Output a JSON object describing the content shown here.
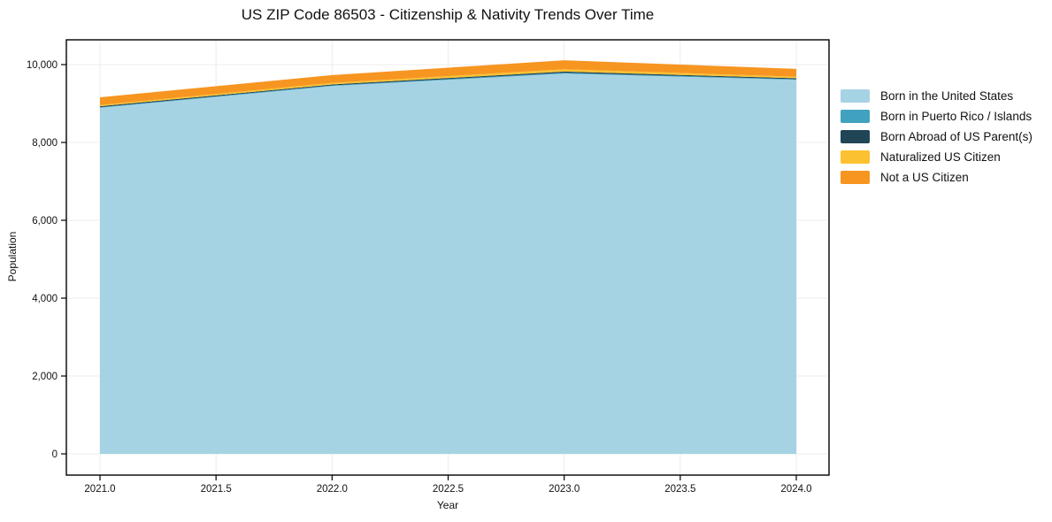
{
  "title": "US ZIP Code 86503 - Citizenship & Nativity Trends Over Time",
  "chart_data": {
    "type": "area",
    "stacked": true,
    "title": "US ZIP Code 86503 - Citizenship & Nativity Trends Over Time",
    "xlabel": "Year",
    "ylabel": "Population",
    "x": [
      2021,
      2022,
      2023,
      2024
    ],
    "series": [
      {
        "name": "Born in the United States",
        "color": "#a5d3e4",
        "values": [
          8890,
          9450,
          9770,
          9610
        ]
      },
      {
        "name": "Born in Puerto Rico / Islands",
        "color": "#41a2c0",
        "values": [
          15,
          15,
          20,
          15
        ]
      },
      {
        "name": "Born Abroad of US Parent(s)",
        "color": "#1f4557",
        "values": [
          25,
          25,
          30,
          25
        ]
      },
      {
        "name": "Naturalized US Citizen",
        "color": "#fcc130",
        "values": [
          30,
          40,
          60,
          40
        ]
      },
      {
        "name": "Not a US Citizen",
        "color": "#f79521",
        "values": [
          200,
          200,
          230,
          200
        ]
      }
    ],
    "stack_totals": [
      9160,
      9730,
      10110,
      9890
    ],
    "x_ticks": [
      "2021.0",
      "2021.5",
      "2022.0",
      "2022.5",
      "2023.0",
      "2023.5",
      "2024.0"
    ],
    "x_tick_values": [
      2021,
      2021.5,
      2022,
      2022.5,
      2023,
      2023.5,
      2024
    ],
    "y_ticks": [
      "0",
      "2,000",
      "4,000",
      "6,000",
      "8,000",
      "10,000"
    ],
    "y_tick_values": [
      0,
      2000,
      4000,
      6000,
      8000,
      10000
    ],
    "ylim": [
      0,
      10000
    ],
    "grid": true,
    "legend_position": "right"
  },
  "colors": {
    "grid": "#ececec",
    "spine": "#000000",
    "text": "#111111",
    "background": "#ffffff"
  }
}
